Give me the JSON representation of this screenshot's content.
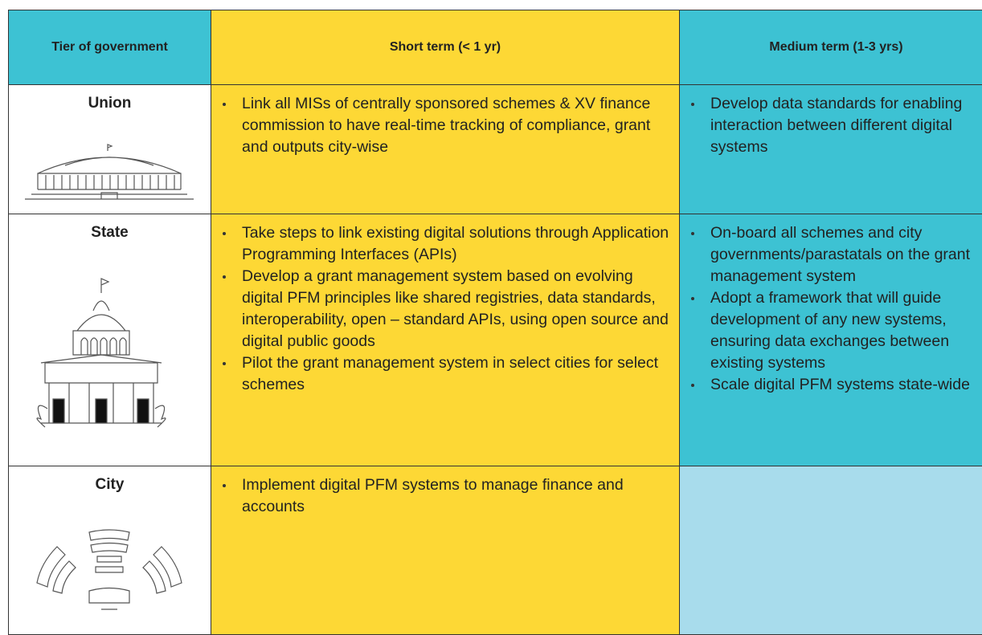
{
  "table": {
    "header": [
      "Tier of government",
      "Short term (< 1 yr)",
      "Medium term (1-3 yrs)"
    ],
    "rows": [
      {
        "tier": "Union",
        "short": [
          "Link all MISs of centrally sponsored schemes & XV finance commission to have real-time tracking of compliance, grant and outputs city-wise"
        ],
        "medium": [
          "Develop data standards for enabling interaction between different digital systems"
        ]
      },
      {
        "tier": "State",
        "short": [
          "Take steps to link existing digital solutions through Application Programming Interfaces (APIs)",
          "Develop a grant management system based on evolving digital PFM principles like shared registries, data standards, interoperability, open – standard APIs, using open source and digital public goods",
          "Pilot the grant management system in select cities for select schemes"
        ],
        "medium": [
          "On-board all schemes and city governments/parastatals on the grant management system",
          "Adopt a framework that will guide development of any new systems, ensuring data exchanges between existing systems",
          "Scale digital PFM systems state-wide"
        ]
      },
      {
        "tier": "City",
        "short": [
          "Implement digital PFM systems to manage finance and accounts"
        ],
        "medium": []
      }
    ]
  }
}
